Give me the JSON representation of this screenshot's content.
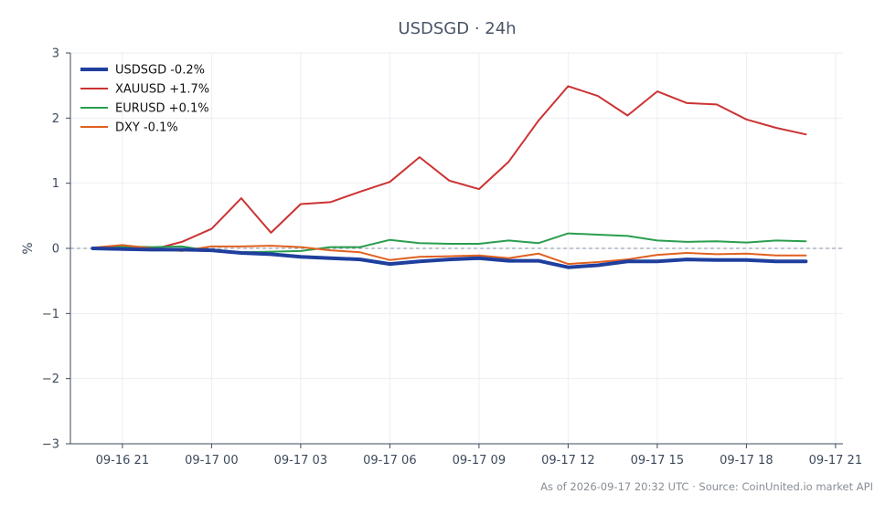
{
  "chart_data": {
    "type": "line",
    "title": "USDSGD · 24h",
    "ylabel": "%",
    "xlabel": "",
    "ylim": [
      -3,
      3
    ],
    "yticks": [
      -3,
      -2,
      -1,
      0,
      1,
      2,
      3
    ],
    "ytick_labels": [
      "−3",
      "−2",
      "−1",
      "0",
      "1",
      "2",
      "3"
    ],
    "xlim": [
      "2026-09-16T19:15",
      "2026-09-17T21:15"
    ],
    "xticks": [
      {
        "t": "2026-09-16T21:00",
        "label": "09-16 21"
      },
      {
        "t": "2026-09-17T00:00",
        "label": "09-17 00"
      },
      {
        "t": "2026-09-17T03:00",
        "label": "09-17 03"
      },
      {
        "t": "2026-09-17T06:00",
        "label": "09-17 06"
      },
      {
        "t": "2026-09-17T09:00",
        "label": "09-17 09"
      },
      {
        "t": "2026-09-17T12:00",
        "label": "09-17 12"
      },
      {
        "t": "2026-09-17T15:00",
        "label": "09-17 15"
      },
      {
        "t": "2026-09-17T18:00",
        "label": "09-17 18"
      },
      {
        "t": "2026-09-17T21:00",
        "label": "09-17 21"
      }
    ],
    "grid": true,
    "zero_line": true,
    "legend_position": "top-left",
    "x": [
      "2026-09-16T20:00",
      "2026-09-16T21:00",
      "2026-09-16T22:00",
      "2026-09-16T23:00",
      "2026-09-17T00:00",
      "2026-09-17T01:00",
      "2026-09-17T02:00",
      "2026-09-17T03:00",
      "2026-09-17T04:00",
      "2026-09-17T05:00",
      "2026-09-17T06:00",
      "2026-09-17T07:00",
      "2026-09-17T08:00",
      "2026-09-17T09:00",
      "2026-09-17T10:00",
      "2026-09-17T11:00",
      "2026-09-17T12:00",
      "2026-09-17T13:00",
      "2026-09-17T14:00",
      "2026-09-17T15:00",
      "2026-09-17T16:00",
      "2026-09-17T17:00",
      "2026-09-17T18:00",
      "2026-09-17T19:00",
      "2026-09-17T20:00"
    ],
    "series": [
      {
        "name": "USDSGD -0.2%",
        "color": "#1f3f9e",
        "bold": true,
        "values": [
          0.0,
          -0.01,
          -0.02,
          -0.02,
          -0.03,
          -0.07,
          -0.09,
          -0.13,
          -0.15,
          -0.17,
          -0.24,
          -0.2,
          -0.17,
          -0.15,
          -0.19,
          -0.19,
          -0.29,
          -0.26,
          -0.2,
          -0.2,
          -0.17,
          -0.18,
          -0.18,
          -0.2,
          -0.2
        ]
      },
      {
        "name": "XAUUSD +1.7%",
        "color": "#cc3333",
        "bold": false,
        "values": [
          0.0,
          0.02,
          -0.02,
          0.1,
          0.3,
          0.77,
          0.24,
          0.68,
          0.71,
          0.87,
          1.02,
          1.4,
          1.04,
          0.91,
          1.33,
          1.96,
          2.49,
          2.34,
          2.04,
          2.41,
          2.23,
          2.21,
          1.98,
          1.85,
          1.75
        ]
      },
      {
        "name": "EURUSD +0.1%",
        "color": "#2a9e4e",
        "bold": false,
        "values": [
          0.0,
          0.03,
          0.02,
          0.03,
          -0.04,
          -0.06,
          -0.05,
          -0.04,
          0.02,
          0.02,
          0.13,
          0.08,
          0.07,
          0.07,
          0.12,
          0.08,
          0.23,
          0.21,
          0.19,
          0.12,
          0.1,
          0.11,
          0.09,
          0.12,
          0.11
        ]
      },
      {
        "name": "DXY -0.1%",
        "color": "#e06020",
        "bold": false,
        "values": [
          0.01,
          0.05,
          0.0,
          -0.04,
          0.03,
          0.03,
          0.04,
          0.02,
          -0.03,
          -0.06,
          -0.18,
          -0.13,
          -0.12,
          -0.11,
          -0.15,
          -0.08,
          -0.24,
          -0.21,
          -0.17,
          -0.1,
          -0.07,
          -0.09,
          -0.08,
          -0.11,
          -0.11
        ]
      }
    ],
    "footer": "As of 2026-09-17 20:32 UTC · Source: CoinUnited.io market API"
  }
}
